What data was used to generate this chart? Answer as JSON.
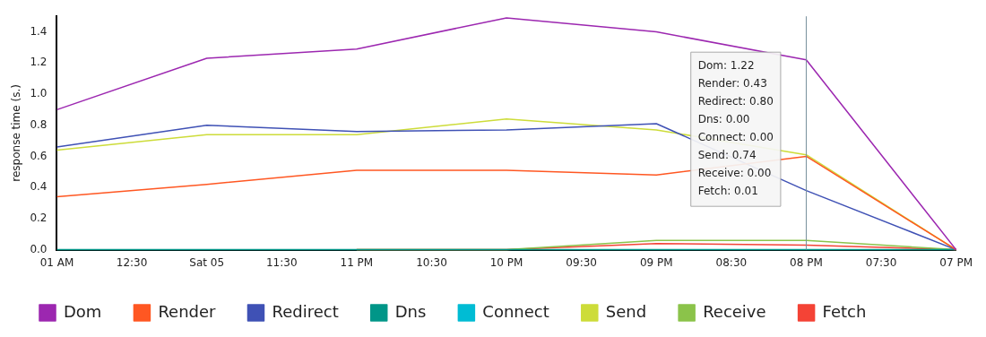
{
  "chart_data": {
    "type": "line",
    "ylabel": "response time (s.)",
    "categories": [
      "01 AM",
      "12:30",
      "Sat 05",
      "11:30",
      "11 PM",
      "10:30",
      "10 PM",
      "09:30",
      "09 PM",
      "08:30",
      "08 PM",
      "07:30",
      "07 PM"
    ],
    "series": [
      {
        "name": "Dom",
        "color": "#9c27b0",
        "values": [
          0.9,
          null,
          1.23,
          null,
          1.29,
          null,
          1.49,
          null,
          1.4,
          null,
          1.22,
          null,
          0
        ]
      },
      {
        "name": "Render",
        "color": "#ff5722",
        "values": [
          0.34,
          null,
          0.42,
          null,
          0.51,
          null,
          0.51,
          null,
          0.48,
          null,
          0.6,
          null,
          0
        ]
      },
      {
        "name": "Redirect",
        "color": "#3f51b5",
        "values": [
          0.66,
          null,
          0.8,
          null,
          0.76,
          null,
          0.77,
          null,
          0.81,
          null,
          0.38,
          null,
          0
        ]
      },
      {
        "name": "Dns",
        "color": "#009688",
        "values": [
          0,
          null,
          0,
          null,
          0,
          null,
          0,
          null,
          0,
          null,
          0,
          null,
          0
        ]
      },
      {
        "name": "Connect",
        "color": "#00bcd4",
        "values": [
          null,
          null,
          null,
          null,
          null,
          null,
          null,
          null,
          null,
          null,
          null,
          null,
          null
        ]
      },
      {
        "name": "Send",
        "color": "#cddc39",
        "values": [
          0.64,
          null,
          0.74,
          null,
          0.74,
          null,
          0.84,
          null,
          0.77,
          null,
          0.61,
          null,
          0
        ]
      },
      {
        "name": "Receive",
        "color": "#8bc34a",
        "values": [
          null,
          null,
          null,
          null,
          0,
          null,
          0,
          null,
          0.06,
          null,
          0.06,
          null,
          0
        ]
      },
      {
        "name": "Fetch",
        "color": "#f44336",
        "values": [
          null,
          null,
          null,
          null,
          0,
          null,
          0,
          null,
          0.04,
          null,
          0.03,
          null,
          0
        ]
      }
    ],
    "ylim": [
      0,
      1.5
    ],
    "yticks": [
      {
        "value": 0,
        "label": "0.0"
      },
      0.2,
      0.4,
      0.6,
      0.8,
      {
        "value": 1,
        "label": "1.0"
      },
      1.2,
      1.4
    ],
    "ref_lines": [
      {
        "axis": "x",
        "value": "08 PM",
        "color": "#78909c"
      }
    ],
    "annotations": [
      "Dom: 1.22",
      "Render: 0.43",
      "Redirect: 0.80",
      "Dns: 0.00",
      "Connect: 0.00",
      "Send: 0.74",
      "Receive: 0.00",
      "Fetch: 0.01"
    ],
    "grid": false,
    "legend": "bottom",
    "marker": "none",
    "line_style": "solid"
  }
}
